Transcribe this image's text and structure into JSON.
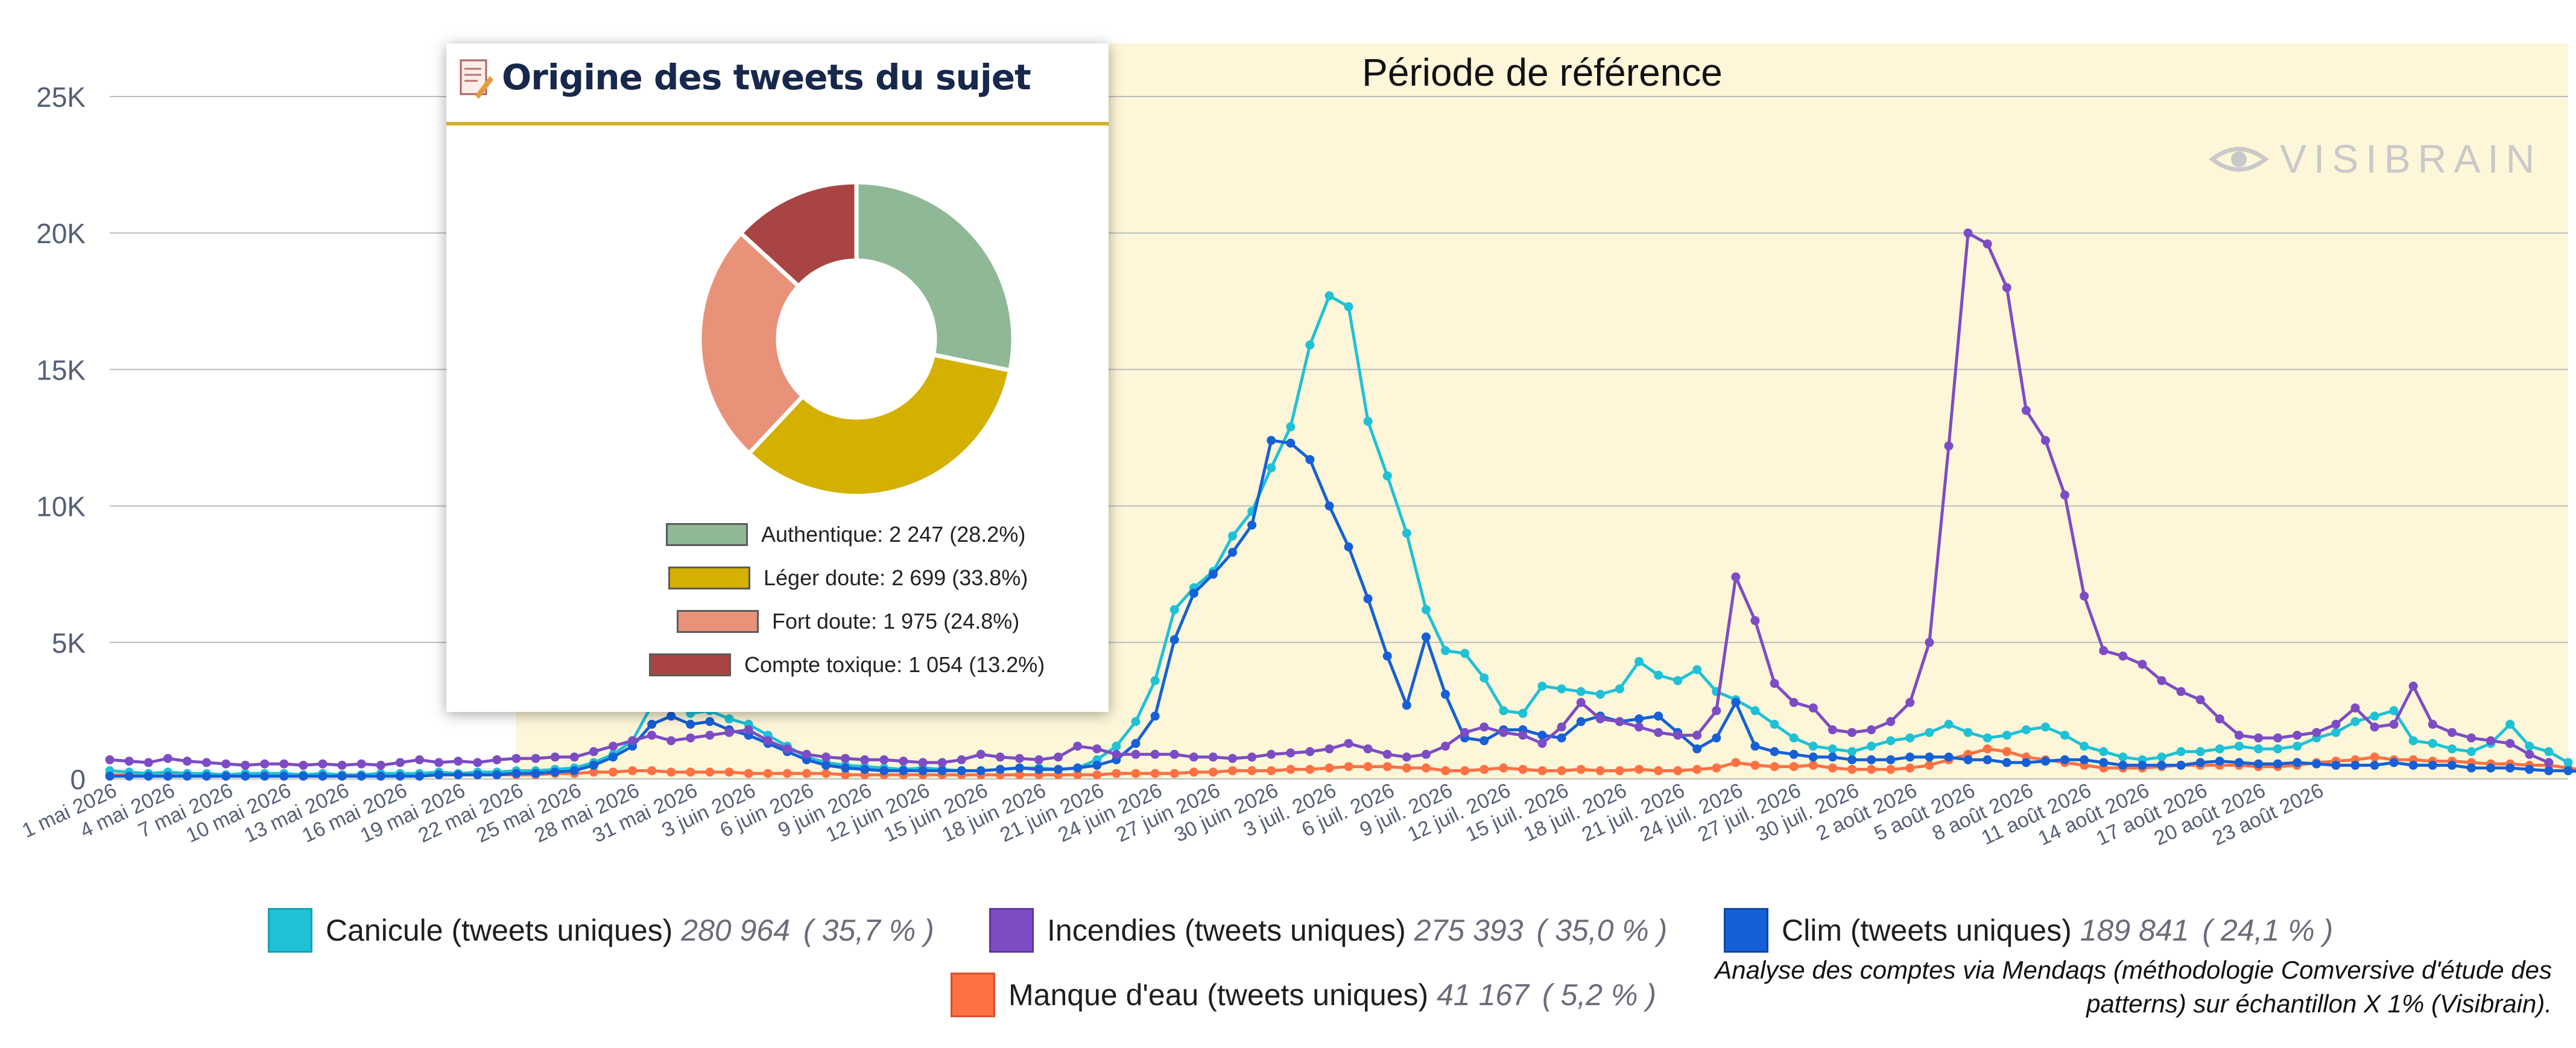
{
  "chart_data": {
    "type": "line",
    "title": "",
    "xlabel": "",
    "ylabel": "",
    "ylim": [
      0,
      25000
    ],
    "y_ticks": [
      0,
      5000,
      10000,
      15000,
      20000,
      25000
    ],
    "y_tick_labels": [
      "0",
      "5K",
      "10K",
      "15K",
      "20K",
      "25K"
    ],
    "grid": "horizontal",
    "x_tick_labels": [
      "1 mai 2026",
      "4 mai 2026",
      "7 mai 2026",
      "10 mai 2026",
      "13 mai 2026",
      "16 mai 2026",
      "19 mai 2026",
      "22 mai 2026",
      "25 mai 2026",
      "28 mai 2026",
      "31 mai 2026",
      "3 juin 2026",
      "6 juin 2026",
      "9 juin 2026",
      "12 juin 2026",
      "15 juin 2026",
      "18 juin 2026",
      "21 juin 2026",
      "24 juin 2026",
      "27 juin 2026",
      "30 juin 2026",
      "3 juil. 2026",
      "6 juil. 2026",
      "9 juil. 2026",
      "12 juil. 2026",
      "15 juil. 2026",
      "18 juil. 2026",
      "21 juil. 2026",
      "24 juil. 2026",
      "27 juil. 2026",
      "30 juil. 2026",
      "2 août 2026",
      "5 août 2026",
      "8 août 2026",
      "11 août 2026",
      "14 août 2026",
      "17 août 2026",
      "20 août 2026",
      "23 août 2026"
    ],
    "reference_period": {
      "label": "Période de référence",
      "start_day": 21,
      "end_day": 127
    },
    "series": [
      {
        "name": "Canicule (tweets uniques)",
        "total": "280 964",
        "pct": "( 35,7 % )",
        "color": "#1fc1d6",
        "values": [
          300,
          250,
          200,
          250,
          200,
          200,
          150,
          200,
          200,
          200,
          150,
          200,
          150,
          150,
          200,
          200,
          200,
          250,
          200,
          250,
          250,
          300,
          300,
          350,
          400,
          600,
          900,
          1400,
          2700,
          3300,
          2400,
          2500,
          2200,
          2000,
          1600,
          1200,
          800,
          600,
          500,
          450,
          400,
          350,
          400,
          350,
          300,
          300,
          350,
          400,
          400,
          350,
          400,
          700,
          1200,
          2100,
          3600,
          6200,
          7000,
          7600,
          8900,
          9800,
          11400,
          12900,
          15900,
          17700,
          17300,
          13100,
          11100,
          9000,
          6200,
          4700,
          4600,
          3700,
          2500,
          2400,
          3400,
          3300,
          3200,
          3100,
          3300,
          4300,
          3800,
          3600,
          4000,
          3200,
          2900,
          2500,
          2000,
          1500,
          1200,
          1100,
          1000,
          1200,
          1400,
          1500,
          1700,
          2000,
          1700,
          1500,
          1600,
          1800,
          1900,
          1600,
          1200,
          1000,
          800,
          700,
          800,
          1000,
          1000,
          1100,
          1200,
          1100,
          1100,
          1200,
          1500,
          1700,
          2100,
          2300,
          2500,
          1400,
          1300,
          1100,
          1000,
          1300,
          2000,
          1200,
          1000,
          600
        ]
      },
      {
        "name": "Incendies (tweets uniques)",
        "total": "275 393",
        "pct": "( 35,0 % )",
        "color": "#7d4cc4",
        "values": [
          700,
          650,
          600,
          750,
          650,
          600,
          550,
          500,
          550,
          550,
          500,
          550,
          500,
          550,
          500,
          600,
          700,
          600,
          650,
          600,
          700,
          750,
          750,
          800,
          800,
          1000,
          1200,
          1400,
          1600,
          1400,
          1500,
          1600,
          1700,
          1800,
          1400,
          1100,
          900,
          800,
          750,
          700,
          700,
          650,
          600,
          600,
          700,
          900,
          800,
          750,
          700,
          800,
          1200,
          1100,
          900,
          900,
          900,
          900,
          800,
          800,
          750,
          800,
          900,
          950,
          1000,
          1100,
          1300,
          1100,
          900,
          800,
          900,
          1200,
          1700,
          1900,
          1700,
          1600,
          1300,
          1900,
          2800,
          2200,
          2100,
          1900,
          1700,
          1600,
          1600,
          2500,
          7400,
          5800,
          3500,
          2800,
          2600,
          1800,
          1700,
          1800,
          2100,
          2800,
          5000,
          12200,
          20000,
          19600,
          18000,
          13500,
          12400,
          10400,
          6700,
          4700,
          4500,
          4200,
          3600,
          3200,
          2900,
          2200,
          1600,
          1500,
          1500,
          1600,
          1700,
          2000,
          2600,
          1900,
          2000,
          3400,
          2000,
          1700,
          1500,
          1400,
          1300,
          900,
          600
        ]
      },
      {
        "name": "Clim (tweets uniques)",
        "total": "189 841",
        "pct": "( 24,1 % )",
        "color": "#1560d6",
        "values": [
          100,
          100,
          100,
          100,
          100,
          100,
          100,
          100,
          100,
          100,
          100,
          100,
          100,
          100,
          100,
          100,
          100,
          150,
          150,
          150,
          150,
          200,
          200,
          250,
          300,
          500,
          800,
          1200,
          2000,
          2300,
          2000,
          2100,
          1800,
          1600,
          1300,
          1000,
          700,
          500,
          400,
          350,
          300,
          300,
          300,
          300,
          300,
          300,
          350,
          400,
          350,
          350,
          400,
          500,
          700,
          1300,
          2300,
          5100,
          6800,
          7500,
          8300,
          9300,
          12400,
          12300,
          11700,
          10000,
          8500,
          6600,
          4500,
          2700,
          5200,
          3100,
          1500,
          1400,
          1800,
          1800,
          1600,
          1500,
          2100,
          2300,
          2100,
          2200,
          2300,
          1700,
          1100,
          1500,
          2800,
          1200,
          1000,
          900,
          800,
          800,
          700,
          700,
          700,
          800,
          800,
          800,
          700,
          700,
          600,
          600,
          650,
          700,
          700,
          600,
          500,
          500,
          500,
          500,
          600,
          650,
          600,
          550,
          550,
          600,
          550,
          500,
          500,
          500,
          600,
          500,
          500,
          500,
          400,
          400,
          400,
          350,
          300,
          300,
          250,
          200,
          100
        ]
      },
      {
        "name": "Manque d'eau (tweets uniques)",
        "total": "41 167",
        "pct": "( 5,2 % )",
        "color": "#ff7043",
        "values": [
          150,
          150,
          150,
          150,
          150,
          150,
          150,
          150,
          150,
          150,
          150,
          150,
          150,
          150,
          150,
          150,
          150,
          150,
          150,
          150,
          150,
          150,
          150,
          200,
          200,
          250,
          250,
          300,
          300,
          250,
          250,
          250,
          250,
          200,
          200,
          200,
          200,
          200,
          150,
          150,
          150,
          150,
          150,
          150,
          150,
          150,
          150,
          150,
          150,
          150,
          150,
          150,
          200,
          200,
          200,
          200,
          250,
          250,
          300,
          300,
          300,
          350,
          350,
          400,
          450,
          450,
          450,
          400,
          400,
          300,
          300,
          350,
          400,
          350,
          300,
          300,
          350,
          300,
          300,
          350,
          300,
          300,
          350,
          400,
          600,
          500,
          450,
          450,
          500,
          400,
          350,
          350,
          350,
          400,
          500,
          700,
          900,
          1100,
          1000,
          800,
          700,
          600,
          500,
          400,
          400,
          400,
          450,
          500,
          500,
          500,
          500,
          450,
          450,
          500,
          600,
          650,
          700,
          800,
          700,
          700,
          650,
          650,
          600,
          550,
          550,
          500,
          500,
          400,
          300,
          150
        ]
      }
    ]
  },
  "popup": {
    "title": "Origine des tweets du sujet",
    "slices": [
      {
        "label": "Authentique: 2 247 (28.2%)",
        "value": 28.2,
        "color": "#8fb996"
      },
      {
        "label": "Léger doute: 2 699 (33.8%)",
        "value": 33.8,
        "color": "#d4b000"
      },
      {
        "label": "Fort doute: 1 975 (24.8%)",
        "value": 24.8,
        "color": "#e8927a"
      },
      {
        "label": "Compte toxique: 1 054 (13.2%)",
        "value": 13.2,
        "color": "#a84444"
      }
    ]
  },
  "watermark": "VISIBRAIN",
  "note": "Analyse des comptes via Mendaqs (méthodologie Comversive d'étude des patterns) sur échantillon X 1% (Visibrain).",
  "colors": {
    "reference_band": "#fdf6d8",
    "grid": "#bdbdbd",
    "axis_text": "#555f75"
  }
}
